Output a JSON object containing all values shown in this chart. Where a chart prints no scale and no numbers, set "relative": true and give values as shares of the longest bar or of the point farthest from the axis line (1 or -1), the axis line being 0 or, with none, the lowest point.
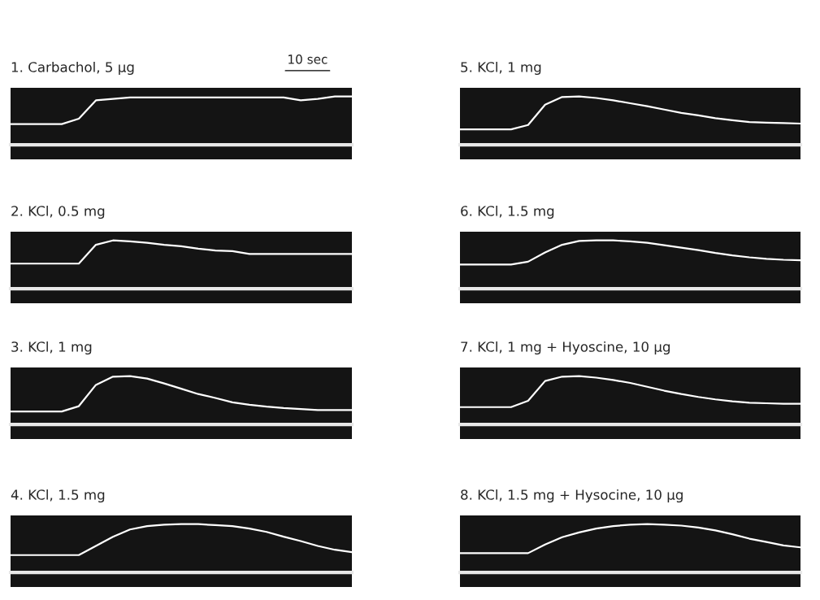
{
  "chart_data": [
    {
      "type": "line",
      "title": "1. Carbachol, 5 μg",
      "relative": true,
      "annotations": [
        "10 sec"
      ],
      "categories": [
        null,
        null,
        null,
        null,
        null,
        null,
        null,
        null,
        null,
        null,
        null,
        null,
        null,
        null,
        null,
        null,
        null,
        null,
        null,
        null,
        null
      ],
      "series": [
        {
          "color": "#ffffff",
          "values": [
            0.43,
            0.43,
            0.43,
            0.43,
            0.54,
            0.92,
            0.95,
            0.98,
            0.98,
            0.98,
            0.98,
            0.98,
            0.98,
            0.98,
            0.98,
            0.98,
            0.98,
            0.92,
            0.95,
            1,
            1
          ]
        }
      ]
    },
    {
      "type": "line",
      "title": "5. KCl, 1 mg",
      "relative": true,
      "categories": [
        null,
        null,
        null,
        null,
        null,
        null,
        null,
        null,
        null,
        null,
        null,
        null,
        null,
        null,
        null,
        null,
        null,
        null,
        null,
        null,
        null
      ],
      "series": [
        {
          "color": "#ffffff",
          "values": [
            0.32,
            0.32,
            0.32,
            0.32,
            0.41,
            0.83,
            0.99,
            1,
            0.97,
            0.92,
            0.86,
            0.8,
            0.73,
            0.66,
            0.61,
            0.55,
            0.51,
            0.47,
            0.46,
            0.45,
            0.44
          ]
        }
      ]
    },
    {
      "type": "line",
      "title": "2. KCl, 0.5 mg",
      "relative": true,
      "categories": [
        null,
        null,
        null,
        null,
        null,
        null,
        null,
        null,
        null,
        null,
        null,
        null,
        null,
        null,
        null,
        null,
        null,
        null,
        null,
        null,
        null
      ],
      "series": [
        {
          "color": "#ffffff",
          "values": [
            0.52,
            0.52,
            0.52,
            0.52,
            0.52,
            0.91,
            1,
            0.98,
            0.95,
            0.91,
            0.88,
            0.83,
            0.79,
            0.78,
            0.72,
            0.72,
            0.72,
            0.72,
            0.72,
            0.72,
            0.72
          ]
        }
      ]
    },
    {
      "type": "line",
      "title": "6. KCl, 1.5 mg",
      "relative": true,
      "categories": [
        null,
        null,
        null,
        null,
        null,
        null,
        null,
        null,
        null,
        null,
        null,
        null,
        null,
        null,
        null,
        null,
        null,
        null,
        null,
        null,
        null
      ],
      "series": [
        {
          "color": "#ffffff",
          "values": [
            0.5,
            0.5,
            0.5,
            0.5,
            0.56,
            0.75,
            0.91,
            0.99,
            1,
            1,
            0.98,
            0.95,
            0.9,
            0.85,
            0.8,
            0.74,
            0.69,
            0.65,
            0.62,
            0.6,
            0.59
          ]
        }
      ]
    },
    {
      "type": "line",
      "title": "3. KCl, 1 mg",
      "relative": true,
      "categories": [
        null,
        null,
        null,
        null,
        null,
        null,
        null,
        null,
        null,
        null,
        null,
        null,
        null,
        null,
        null,
        null,
        null,
        null,
        null,
        null,
        null
      ],
      "series": [
        {
          "color": "#ffffff",
          "values": [
            0.27,
            0.27,
            0.27,
            0.27,
            0.38,
            0.82,
            0.99,
            1,
            0.95,
            0.85,
            0.74,
            0.63,
            0.55,
            0.46,
            0.41,
            0.37,
            0.34,
            0.32,
            0.3,
            0.3,
            0.3
          ]
        }
      ]
    },
    {
      "type": "line",
      "title": "7. KCl, 1 mg + Hyoscine, 10 μg",
      "relative": true,
      "categories": [
        null,
        null,
        null,
        null,
        null,
        null,
        null,
        null,
        null,
        null,
        null,
        null,
        null,
        null,
        null,
        null,
        null,
        null,
        null,
        null,
        null
      ],
      "series": [
        {
          "color": "#ffffff",
          "values": [
            0.36,
            0.36,
            0.36,
            0.36,
            0.49,
            0.9,
            0.99,
            1,
            0.97,
            0.92,
            0.86,
            0.78,
            0.7,
            0.63,
            0.57,
            0.52,
            0.48,
            0.45,
            0.44,
            0.43,
            0.43
          ]
        }
      ]
    },
    {
      "type": "line",
      "title": "4. KCl, 1.5 mg",
      "relative": true,
      "categories": [
        null,
        null,
        null,
        null,
        null,
        null,
        null,
        null,
        null,
        null,
        null,
        null,
        null,
        null,
        null,
        null,
        null,
        null,
        null,
        null,
        null
      ],
      "series": [
        {
          "color": "#ffffff",
          "values": [
            0.36,
            0.36,
            0.36,
            0.36,
            0.36,
            0.55,
            0.74,
            0.89,
            0.96,
            0.99,
            1,
            1,
            0.98,
            0.96,
            0.91,
            0.84,
            0.74,
            0.65,
            0.55,
            0.47,
            0.42
          ]
        }
      ]
    },
    {
      "type": "line",
      "title": "8. KCl, 1.5 mg + Hysocine, 10 μg",
      "relative": true,
      "categories": [
        null,
        null,
        null,
        null,
        null,
        null,
        null,
        null,
        null,
        null,
        null,
        null,
        null,
        null,
        null,
        null,
        null,
        null,
        null,
        null,
        null
      ],
      "series": [
        {
          "color": "#ffffff",
          "values": [
            0.4,
            0.4,
            0.4,
            0.4,
            0.4,
            0.58,
            0.73,
            0.83,
            0.91,
            0.96,
            0.99,
            1,
            0.99,
            0.97,
            0.93,
            0.87,
            0.79,
            0.7,
            0.63,
            0.56,
            0.52
          ]
        }
      ]
    }
  ]
}
